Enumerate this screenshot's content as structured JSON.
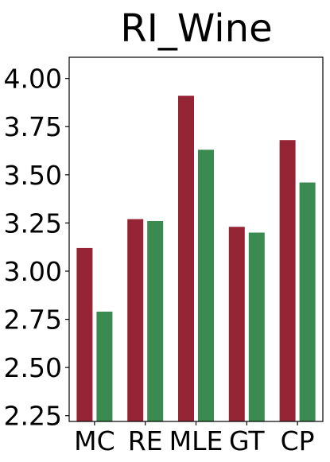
{
  "chart_data": {
    "type": "bar",
    "title": "RI_Wine",
    "xlabel": "",
    "ylabel": "",
    "categories": [
      "MC",
      "RE",
      "MLE",
      "GT",
      "CP"
    ],
    "series": [
      {
        "values": [
          3.12,
          3.27,
          3.91,
          3.23,
          3.68
        ],
        "color": "#952435"
      },
      {
        "values": [
          2.79,
          3.26,
          3.63,
          3.2,
          3.46
        ],
        "color": "#3b8a50"
      }
    ],
    "ylim": [
      2.22,
      4.11
    ],
    "yticks": [
      2.25,
      2.5,
      2.75,
      3.0,
      3.25,
      3.5,
      3.75,
      4.0
    ],
    "ytick_labels": [
      "2.25",
      "2.50",
      "2.75",
      "3.00",
      "3.25",
      "3.50",
      "3.75",
      "4.00"
    ],
    "grid": false,
    "legend": "none"
  }
}
